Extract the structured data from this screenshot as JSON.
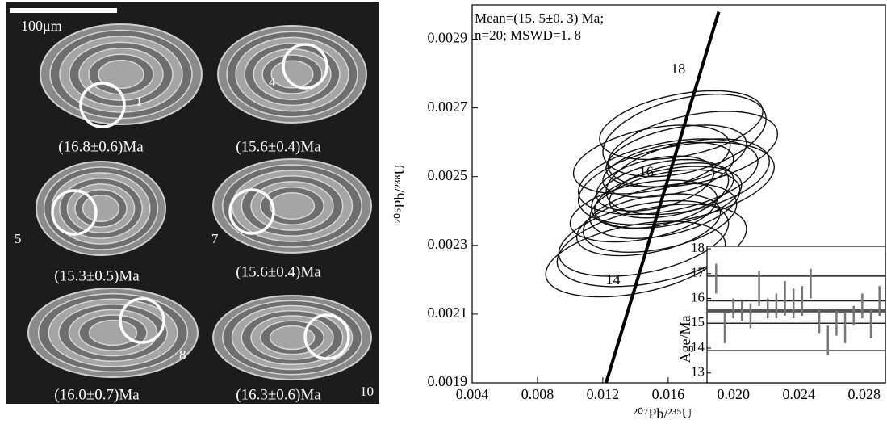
{
  "cl_panel": {
    "scale_label": "100μm",
    "grains": [
      {
        "spot": "1",
        "age": "(16.8±0.6)Ma"
      },
      {
        "spot": "4",
        "age": "(15.6±0.4)Ma"
      },
      {
        "spot": "5",
        "age": "(15.3±0.5)Ma"
      },
      {
        "spot": "7",
        "age": "(15.6±0.4)Ma"
      },
      {
        "spot": "8",
        "age": "(16.0±0.7)Ma"
      },
      {
        "spot": "10",
        "age": "(16.3±0.6)Ma"
      }
    ]
  },
  "chart_data": [
    {
      "type": "concordia",
      "annotation": [
        "Mean=(15. 5±0. 3) Ma;",
        "n=20; MSWD=1. 8"
      ],
      "x_label": "²⁰⁷Pb/²³⁵U",
      "y_label": "²⁰⁶Pb/²³⁸U",
      "xlim": [
        0.004,
        0.0293
      ],
      "ylim": [
        0.0019,
        0.003
      ],
      "xticks": [
        0.004,
        0.008,
        0.012,
        0.016,
        {
          "value": 0.02,
          "label": "0.020"
        },
        0.024,
        0.028
      ],
      "yticks": [
        0.0019,
        0.0021,
        0.0023,
        0.0025,
        0.0027,
        0.0029
      ],
      "concordia": {
        "x": [
          0.0122,
          0.0191
        ],
        "y": [
          0.0019,
          0.00298
        ]
      },
      "age_marks": {
        "values": [
          18,
          16,
          14
        ],
        "x": [
          0.01745,
          0.0155,
          0.01347
        ],
        "y": [
          0.00281,
          0.00251,
          0.002196
        ]
      },
      "series": [
        {
          "color": "#111111",
          "x": [
            0.015,
            0.016,
            0.017,
            0.0145,
            0.0165,
            0.0155,
            0.0175,
            0.016,
            0.015,
            0.0168,
            0.0158,
            0.0148,
            0.0162,
            0.0172,
            0.014,
            0.0155,
            0.0165,
            0.0152,
            0.0145,
            0.016
          ],
          "y": [
            0.00255,
            0.0025,
            0.00262,
            0.0024,
            0.00248,
            0.00245,
            0.00258,
            0.00252,
            0.0023,
            0.00265,
            0.00242,
            0.00236,
            0.00246,
            0.0025,
            0.00226,
            0.00238,
            0.00256,
            0.00248,
            0.00232,
            0.00244
          ],
          "x_err": [
            0.0048,
            0.0055,
            0.005,
            0.0045,
            0.006,
            0.0042,
            0.0052,
            0.004,
            0.0058,
            0.005,
            0.0046,
            0.0044,
            0.0038,
            0.005,
            0.0055,
            0.0047,
            0.0043,
            0.0036,
            0.0052,
            0.0045
          ],
          "y_err": [
            0.0001,
            0.00011,
            0.00012,
            9e-05,
            0.00012,
            0.0001,
            0.00011,
            8e-05,
            0.00012,
            0.0001,
            0.0001,
            9e-05,
            8e-05,
            0.00011,
            0.00011,
            0.0001,
            9e-05,
            8e-05,
            0.00011,
            9e-05
          ],
          "rho": [
            0.4,
            0.4,
            0.4,
            0.4,
            0.4,
            0.4,
            0.4,
            0.4,
            0.4,
            0.4,
            0.4,
            0.4,
            0.4,
            0.4,
            0.4,
            0.4,
            0.4,
            0.4,
            0.4,
            0.4
          ]
        }
      ]
    },
    {
      "type": "errorbar",
      "y_label": "Age/Ma",
      "ylim": [
        12.6,
        18.1
      ],
      "yticks": [
        13,
        14,
        15,
        16,
        17,
        18
      ],
      "mean": 15.5,
      "lines": [
        16.9,
        15.9,
        15.0,
        13.9
      ],
      "color": "#777777",
      "values": [
        16.8,
        14.8,
        15.6,
        15.5,
        15.3,
        16.4,
        15.6,
        15.7,
        16.0,
        15.8,
        15.9,
        16.6,
        15.1,
        14.3,
        15.0,
        14.8,
        15.3,
        15.7,
        15.0,
        15.9
      ],
      "errors": [
        0.6,
        0.6,
        0.4,
        0.4,
        0.5,
        0.7,
        0.4,
        0.5,
        0.7,
        0.6,
        0.6,
        0.6,
        0.5,
        0.6,
        0.5,
        0.6,
        0.4,
        0.5,
        0.6,
        0.6
      ]
    }
  ]
}
